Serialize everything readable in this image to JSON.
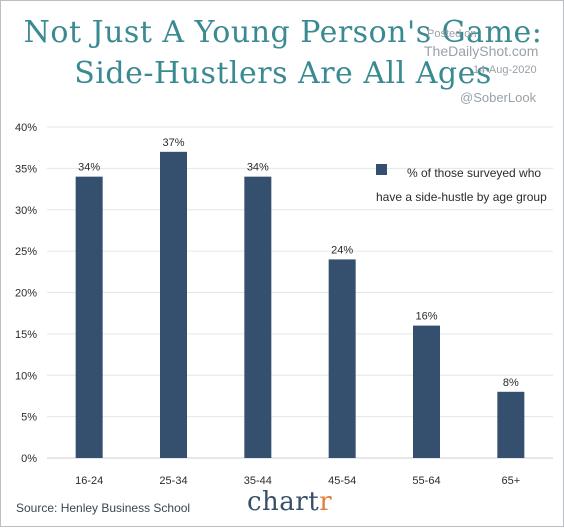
{
  "title_line1": "Not Just A Young Person's Game:",
  "title_line2": "Side-Hustlers Are All Ages",
  "watermark": {
    "posted": "Posted on",
    "site": "TheDailyShot.com",
    "date": "14-Aug-2020",
    "handle": "@SoberLook"
  },
  "legend_label": "% of those surveyed who have a side-hustle by age group",
  "source": "Source: Henley Business School",
  "brand": {
    "main": "chart",
    "accent": "r"
  },
  "colors": {
    "bar": "#34506e",
    "title": "#3a8a92",
    "grid": "#e6e6e6",
    "brand_accent": "#e07e3c"
  },
  "chart_data": {
    "type": "bar",
    "categories": [
      "16-24",
      "25-34",
      "35-44",
      "45-54",
      "55-64",
      "65+"
    ],
    "values": [
      34,
      37,
      34,
      24,
      16,
      8
    ],
    "data_labels": [
      "34%",
      "37%",
      "34%",
      "24%",
      "16%",
      "8%"
    ],
    "ylim": [
      0,
      40
    ],
    "yticks": [
      0,
      5,
      10,
      15,
      20,
      25,
      30,
      35,
      40
    ],
    "ytick_labels": [
      "0%",
      "5%",
      "10%",
      "15%",
      "20%",
      "25%",
      "30%",
      "35%",
      "40%"
    ],
    "grid": true,
    "legend": "right",
    "unit": "%"
  }
}
